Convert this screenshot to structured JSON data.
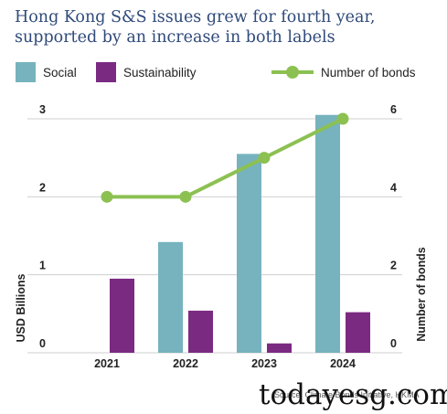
{
  "header": {
    "title_line1": "Hong Kong S&S issues grew for fourth year,",
    "title_line2": "supported by an increase in both labels"
  },
  "footer": {
    "source": "Source: Climate Bonds Initiative, HKMA",
    "watermark": "todayesg.com"
  },
  "colors": {
    "social": "#76b3be",
    "sustainability": "#7b2a82",
    "bonds_line": "#8cc152",
    "grid": "#cfcfcf",
    "title": "#2f4a7a"
  },
  "chart_data": {
    "type": "bar",
    "title": "Hong Kong S&S issues grew for fourth year, supported by an increase in both labels",
    "categories": [
      "2021",
      "2022",
      "2023",
      "2024"
    ],
    "series": [
      {
        "name": "Social",
        "values": [
          0,
          1.42,
          2.55,
          3.05
        ]
      },
      {
        "name": "Sustainability",
        "values": [
          0.95,
          0.54,
          0.12,
          0.52
        ]
      }
    ],
    "line_series": {
      "name": "Number of bonds",
      "values": [
        4,
        4,
        5,
        6
      ]
    },
    "ylabel": "USD Billions",
    "y2label": "Number of bonds",
    "ylim": [
      0,
      3
    ],
    "y2lim": [
      0,
      6
    ],
    "yticks": [
      "0",
      "1",
      "2",
      "3"
    ],
    "y2ticks": [
      "0",
      "2",
      "4",
      "6"
    ],
    "grid": true,
    "legend": "top"
  }
}
